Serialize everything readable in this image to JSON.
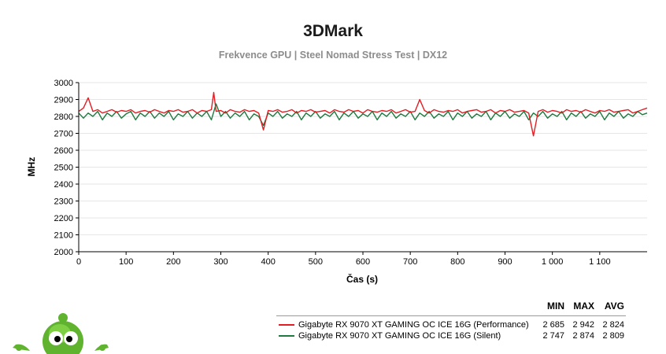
{
  "header": {
    "title": "3DMark",
    "subtitle": "Frekvence GPU | Steel Nomad Stress Test | DX12"
  },
  "legend": {
    "columns": [
      "MIN",
      "MAX",
      "AVG"
    ],
    "rows": [
      {
        "name": "Gigabyte RX 9070 XT GAMING OC ICE 16G (Performance)",
        "min": "2 685",
        "max": "2 942",
        "avg": "2 824",
        "color": "#e01e24"
      },
      {
        "name": "Gigabyte RX 9070 XT GAMING OC ICE 16G (Silent)",
        "min": "2 747",
        "max": "2 874",
        "avg": "2 809",
        "color": "#1f7a3f"
      }
    ]
  },
  "chart_data": {
    "type": "line",
    "title": "3DMark",
    "subtitle": "Frekvence GPU | Steel Nomad Stress Test | DX12",
    "xlabel": "Čas (s)",
    "ylabel": "MHz",
    "xlim": [
      0,
      1200
    ],
    "ylim": [
      2000,
      3000
    ],
    "x_ticks": [
      0,
      100,
      200,
      300,
      400,
      500,
      600,
      700,
      800,
      900,
      1000,
      1100
    ],
    "x_tick_labels": [
      "0",
      "100",
      "200",
      "300",
      "400",
      "500",
      "600",
      "700",
      "800",
      "900",
      "1 000",
      "1 100"
    ],
    "y_ticks": [
      2000,
      2100,
      2200,
      2300,
      2400,
      2500,
      2600,
      2700,
      2800,
      2900,
      3000
    ],
    "grid": "horizontal",
    "legend_position": "bottom-right",
    "series": [
      {
        "name": "Gigabyte RX 9070 XT GAMING OC ICE 16G (Performance)",
        "color": "#e01e24",
        "x": [
          0,
          10,
          20,
          30,
          40,
          50,
          60,
          70,
          80,
          90,
          100,
          110,
          120,
          130,
          140,
          150,
          160,
          170,
          180,
          190,
          200,
          210,
          220,
          230,
          240,
          250,
          260,
          270,
          280,
          285,
          290,
          300,
          310,
          320,
          330,
          340,
          350,
          360,
          370,
          380,
          390,
          400,
          410,
          420,
          430,
          440,
          450,
          460,
          470,
          480,
          490,
          500,
          510,
          520,
          530,
          540,
          550,
          560,
          570,
          580,
          590,
          600,
          610,
          620,
          630,
          640,
          650,
          660,
          670,
          680,
          690,
          700,
          710,
          720,
          730,
          740,
          750,
          760,
          770,
          780,
          790,
          800,
          810,
          820,
          830,
          840,
          850,
          860,
          870,
          880,
          890,
          900,
          910,
          920,
          930,
          940,
          950,
          960,
          970,
          980,
          990,
          1000,
          1010,
          1020,
          1030,
          1040,
          1050,
          1060,
          1070,
          1080,
          1090,
          1100,
          1110,
          1120,
          1130,
          1140,
          1150,
          1160,
          1170,
          1180,
          1190,
          1200
        ],
        "y": [
          2830,
          2850,
          2910,
          2830,
          2840,
          2820,
          2830,
          2840,
          2825,
          2835,
          2830,
          2840,
          2820,
          2830,
          2835,
          2825,
          2840,
          2830,
          2820,
          2835,
          2830,
          2840,
          2825,
          2830,
          2840,
          2820,
          2835,
          2830,
          2840,
          2942,
          2830,
          2835,
          2820,
          2840,
          2830,
          2825,
          2840,
          2830,
          2835,
          2820,
          2720,
          2835,
          2830,
          2840,
          2825,
          2830,
          2840,
          2820,
          2835,
          2830,
          2840,
          2825,
          2830,
          2835,
          2820,
          2840,
          2830,
          2825,
          2840,
          2830,
          2835,
          2820,
          2840,
          2830,
          2825,
          2835,
          2830,
          2840,
          2820,
          2830,
          2840,
          2825,
          2830,
          2900,
          2835,
          2820,
          2840,
          2830,
          2825,
          2835,
          2830,
          2840,
          2820,
          2830,
          2835,
          2840,
          2825,
          2830,
          2840,
          2820,
          2835,
          2830,
          2840,
          2825,
          2830,
          2835,
          2820,
          2685,
          2830,
          2840,
          2825,
          2835,
          2830,
          2820,
          2840,
          2830,
          2835,
          2825,
          2840,
          2830,
          2820,
          2835,
          2830,
          2840,
          2825,
          2830,
          2835,
          2840,
          2820,
          2830,
          2840,
          2850
        ]
      },
      {
        "name": "Gigabyte RX 9070 XT GAMING OC ICE 16G (Silent)",
        "color": "#1f7a3f",
        "x": [
          0,
          10,
          20,
          30,
          40,
          50,
          60,
          70,
          80,
          90,
          100,
          110,
          120,
          130,
          140,
          150,
          160,
          170,
          180,
          190,
          200,
          210,
          220,
          230,
          240,
          250,
          260,
          270,
          280,
          290,
          300,
          310,
          320,
          330,
          340,
          350,
          360,
          370,
          380,
          390,
          400,
          410,
          420,
          430,
          440,
          450,
          460,
          470,
          480,
          490,
          500,
          510,
          520,
          530,
          540,
          550,
          560,
          570,
          580,
          590,
          600,
          610,
          620,
          630,
          640,
          650,
          660,
          670,
          680,
          690,
          700,
          710,
          720,
          730,
          740,
          750,
          760,
          770,
          780,
          790,
          800,
          810,
          820,
          830,
          840,
          850,
          860,
          870,
          880,
          890,
          900,
          910,
          920,
          930,
          940,
          950,
          960,
          970,
          980,
          990,
          1000,
          1010,
          1020,
          1030,
          1040,
          1050,
          1060,
          1070,
          1080,
          1090,
          1100,
          1110,
          1120,
          1130,
          1140,
          1150,
          1160,
          1170,
          1180,
          1190,
          1200
        ],
        "y": [
          2820,
          2790,
          2820,
          2800,
          2830,
          2780,
          2820,
          2800,
          2830,
          2790,
          2815,
          2830,
          2780,
          2820,
          2800,
          2830,
          2790,
          2820,
          2800,
          2830,
          2780,
          2815,
          2800,
          2830,
          2790,
          2820,
          2800,
          2830,
          2780,
          2874,
          2800,
          2830,
          2790,
          2820,
          2800,
          2830,
          2780,
          2815,
          2800,
          2747,
          2820,
          2800,
          2830,
          2790,
          2815,
          2800,
          2830,
          2780,
          2820,
          2800,
          2830,
          2790,
          2815,
          2800,
          2830,
          2780,
          2820,
          2800,
          2830,
          2790,
          2815,
          2800,
          2830,
          2780,
          2820,
          2800,
          2830,
          2790,
          2815,
          2800,
          2830,
          2780,
          2820,
          2800,
          2830,
          2790,
          2815,
          2800,
          2830,
          2780,
          2820,
          2800,
          2830,
          2790,
          2815,
          2800,
          2830,
          2780,
          2820,
          2800,
          2830,
          2790,
          2815,
          2800,
          2830,
          2780,
          2820,
          2800,
          2830,
          2790,
          2815,
          2800,
          2830,
          2780,
          2820,
          2800,
          2830,
          2790,
          2815,
          2800,
          2830,
          2780,
          2820,
          2800,
          2830,
          2790,
          2815,
          2800,
          2830,
          2810,
          2820
        ]
      }
    ]
  }
}
